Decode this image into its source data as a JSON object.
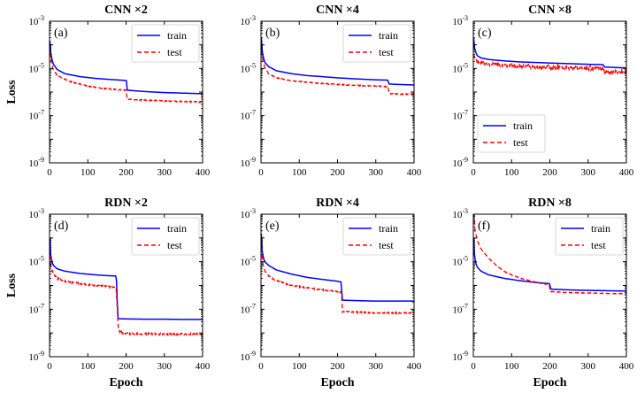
{
  "figure": {
    "y_axis_label": "Loss",
    "x_axis_label": "Epoch"
  },
  "colors": {
    "train": "#0000ff",
    "test": "#ff0000"
  },
  "chart_data": [
    {
      "type": "line",
      "panel": "(a)",
      "title": "CNN ×2",
      "xlabel": "",
      "ylabel": "Loss",
      "xlim": [
        0,
        400
      ],
      "ylim": [
        1e-09,
        0.001
      ],
      "yscale": "log",
      "xticks": [
        0,
        100,
        200,
        300,
        400
      ],
      "yticks": [
        {
          "value": 1e-09,
          "label": "10^-9"
        },
        {
          "value": 1e-07,
          "label": "10^-7"
        },
        {
          "value": 1e-05,
          "label": "10^-5"
        },
        {
          "value": 0.001,
          "label": "10^-3"
        }
      ],
      "legend": "top-right",
      "series": [
        {
          "name": "train",
          "style": "solid",
          "x": [
            1,
            3,
            6,
            10,
            20,
            40,
            80,
            120,
            160,
            199,
            201,
            202,
            250,
            300,
            350,
            400
          ],
          "y": [
            0.00015,
            5e-05,
            2.5e-05,
            1.5e-05,
            9e-06,
            6e-06,
            4.5e-06,
            3.8e-06,
            3.4e-06,
            3.1e-06,
            3e-06,
            1.2e-06,
            1.05e-06,
            9.5e-07,
            9e-07,
            8.5e-07
          ]
        },
        {
          "name": "test",
          "style": "dashed",
          "x": [
            1,
            5,
            10,
            20,
            40,
            60,
            80,
            100,
            120,
            140,
            160,
            180,
            200,
            203,
            250,
            300,
            350,
            400
          ],
          "y": [
            5e-05,
            1.8e-05,
            9e-06,
            5e-06,
            3.5e-06,
            2.6e-06,
            2.2e-06,
            1.8e-06,
            1.6e-06,
            1.45e-06,
            1.35e-06,
            1.25e-06,
            1.2e-06,
            5e-07,
            4.5e-07,
            4.2e-07,
            4e-07,
            3.8e-07
          ],
          "noise": 0.55
        }
      ]
    },
    {
      "type": "line",
      "panel": "(b)",
      "title": "CNN ×4",
      "xlabel": "",
      "ylabel": "",
      "xlim": [
        0,
        400
      ],
      "ylim": [
        1e-09,
        0.001
      ],
      "yscale": "log",
      "xticks": [
        0,
        100,
        200,
        300,
        400
      ],
      "yticks": [
        {
          "value": 1e-09,
          "label": "10^-9"
        },
        {
          "value": 1e-07,
          "label": "10^-7"
        },
        {
          "value": 1e-05,
          "label": "10^-5"
        },
        {
          "value": 0.001,
          "label": "10^-3"
        }
      ],
      "legend": "top-right",
      "series": [
        {
          "name": "train",
          "style": "solid",
          "x": [
            1,
            3,
            6,
            10,
            20,
            40,
            80,
            120,
            160,
            200,
            250,
            300,
            332,
            334,
            360,
            400
          ],
          "y": [
            0.0002,
            6e-05,
            3e-05,
            1.8e-05,
            1.2e-05,
            8e-06,
            6e-06,
            5e-06,
            4.5e-06,
            4e-06,
            3.6e-06,
            3.3e-06,
            3.2e-06,
            2.2e-06,
            2.1e-06,
            2e-06
          ]
        },
        {
          "name": "test",
          "style": "dashed",
          "x": [
            1,
            5,
            10,
            20,
            40,
            80,
            120,
            160,
            200,
            250,
            300,
            332,
            335,
            360,
            400
          ],
          "y": [
            5e-05,
            2e-05,
            1.1e-05,
            6e-06,
            4e-06,
            3e-06,
            2.6e-06,
            2.3e-06,
            2.1e-06,
            1.9e-06,
            1.8e-06,
            1.7e-06,
            8.5e-07,
            8.2e-07,
            8e-07
          ],
          "noise": 0.45
        }
      ]
    },
    {
      "type": "line",
      "panel": "(c)",
      "title": "CNN ×8",
      "xlabel": "",
      "ylabel": "",
      "xlim": [
        0,
        400
      ],
      "ylim": [
        1e-09,
        0.001
      ],
      "yscale": "log",
      "xticks": [
        0,
        100,
        200,
        300,
        400
      ],
      "yticks": [
        {
          "value": 1e-09,
          "label": "10^-9"
        },
        {
          "value": 1e-07,
          "label": "10^-7"
        },
        {
          "value": 1e-05,
          "label": "10^-5"
        },
        {
          "value": 0.001,
          "label": "10^-3"
        }
      ],
      "legend": "bottom-left",
      "series": [
        {
          "name": "train",
          "style": "solid",
          "x": [
            1,
            3,
            6,
            10,
            20,
            40,
            80,
            120,
            160,
            200,
            250,
            300,
            340,
            342,
            370,
            400
          ],
          "y": [
            0.0002,
            8e-05,
            5e-05,
            3.5e-05,
            2.8e-05,
            2.4e-05,
            2.1e-05,
            1.9e-05,
            1.8e-05,
            1.7e-05,
            1.6e-05,
            1.5e-05,
            1.45e-05,
            1.15e-05,
            1.1e-05,
            1.05e-05
          ]
        },
        {
          "name": "test",
          "style": "dashed",
          "x": [
            1,
            5,
            10,
            20,
            40,
            80,
            120,
            160,
            200,
            250,
            300,
            340,
            343,
            370,
            400
          ],
          "y": [
            4e-05,
            2.5e-05,
            2e-05,
            1.7e-05,
            1.5e-05,
            1.35e-05,
            1.25e-05,
            1.15e-05,
            1.1e-05,
            1.05e-05,
            1e-05,
            9.5e-06,
            7e-06,
            6.8e-06,
            6.6e-06
          ],
          "noise": 0.15
        }
      ]
    },
    {
      "type": "line",
      "panel": "(d)",
      "title": "RDN ×2",
      "xlabel": "Epoch",
      "ylabel": "Loss",
      "xlim": [
        0,
        400
      ],
      "ylim": [
        1e-09,
        0.001
      ],
      "yscale": "log",
      "xticks": [
        0,
        100,
        200,
        300,
        400
      ],
      "yticks": [
        {
          "value": 1e-09,
          "label": "10^-9"
        },
        {
          "value": 1e-07,
          "label": "10^-7"
        },
        {
          "value": 1e-05,
          "label": "10^-5"
        },
        {
          "value": 0.001,
          "label": "10^-3"
        }
      ],
      "legend": "top-right",
      "series": [
        {
          "name": "train",
          "style": "solid",
          "x": [
            1,
            3,
            6,
            10,
            20,
            40,
            80,
            120,
            150,
            174,
            176,
            178,
            200,
            250,
            300,
            350,
            400
          ],
          "y": [
            0.0001,
            2e-05,
            1e-05,
            7e-06,
            5e-06,
            4e-06,
            3.2e-06,
            2.8e-06,
            2.6e-06,
            2.5e-06,
            1e-06,
            4e-08,
            3.9e-08,
            3.8e-08,
            3.8e-08,
            3.7e-08,
            3.7e-08
          ]
        },
        {
          "name": "test",
          "style": "dashed",
          "x": [
            1,
            5,
            10,
            20,
            40,
            80,
            120,
            150,
            174,
            176,
            180,
            190,
            200,
            250,
            300,
            350,
            400
          ],
          "y": [
            2e-05,
            5e-06,
            3e-06,
            2e-06,
            1.5e-06,
            1.2e-06,
            1e-06,
            9e-07,
            8e-07,
            2e-07,
            1.2e-08,
            1e-08,
            9.5e-09,
            9e-09,
            9e-09,
            9e-09,
            9e-09
          ],
          "noise": 0.9
        }
      ]
    },
    {
      "type": "line",
      "panel": "(e)",
      "title": "RDN ×4",
      "xlabel": "Epoch",
      "ylabel": "",
      "xlim": [
        0,
        400
      ],
      "ylim": [
        1e-09,
        0.001
      ],
      "yscale": "log",
      "xticks": [
        0,
        100,
        200,
        300,
        400
      ],
      "yticks": [
        {
          "value": 1e-09,
          "label": "10^-9"
        },
        {
          "value": 1e-07,
          "label": "10^-7"
        },
        {
          "value": 1e-05,
          "label": "10^-5"
        },
        {
          "value": 0.001,
          "label": "10^-3"
        }
      ],
      "legend": "top-right",
      "series": [
        {
          "name": "train",
          "style": "solid",
          "x": [
            1,
            3,
            6,
            10,
            20,
            40,
            80,
            120,
            160,
            200,
            210,
            212,
            250,
            300,
            350,
            400
          ],
          "y": [
            0.00015,
            3e-05,
            1.5e-05,
            1e-05,
            7e-06,
            4.5e-06,
            3e-06,
            2.2e-06,
            1.8e-06,
            1.5e-06,
            1.4e-06,
            2.4e-07,
            2.3e-07,
            2.2e-07,
            2.2e-07,
            2.2e-07
          ]
        },
        {
          "name": "test",
          "style": "dashed",
          "x": [
            1,
            5,
            10,
            20,
            40,
            80,
            120,
            160,
            200,
            210,
            213,
            250,
            300,
            350,
            400
          ],
          "y": [
            3e-05,
            8e-06,
            4e-06,
            2.5e-06,
            1.6e-06,
            1e-06,
            8e-07,
            6.5e-07,
            5.5e-07,
            5e-07,
            8e-08,
            7.5e-08,
            7e-08,
            7e-08,
            7e-08
          ],
          "noise": 0.65
        }
      ]
    },
    {
      "type": "line",
      "panel": "(f)",
      "title": "RDN ×8",
      "xlabel": "Epoch",
      "ylabel": "",
      "xlim": [
        0,
        400
      ],
      "ylim": [
        1e-09,
        0.001
      ],
      "yscale": "log",
      "xticks": [
        0,
        100,
        200,
        300,
        400
      ],
      "yticks": [
        {
          "value": 1e-09,
          "label": "10^-9"
        },
        {
          "value": 1e-07,
          "label": "10^-7"
        },
        {
          "value": 1e-05,
          "label": "10^-5"
        },
        {
          "value": 0.001,
          "label": "10^-3"
        }
      ],
      "legend": "top-right",
      "series": [
        {
          "name": "train",
          "style": "solid",
          "x": [
            1,
            3,
            6,
            10,
            20,
            40,
            80,
            120,
            160,
            198,
            200,
            202,
            250,
            300,
            350,
            400
          ],
          "y": [
            0.0001,
            2e-05,
            9e-06,
            6e-06,
            4e-06,
            2.8e-06,
            2e-06,
            1.6e-06,
            1.35e-06,
            1.2e-06,
            1.15e-06,
            7e-07,
            6.5e-07,
            6.2e-07,
            6e-07,
            5.8e-07
          ]
        },
        {
          "name": "test",
          "style": "dashed",
          "x": [
            1,
            5,
            10,
            20,
            40,
            60,
            80,
            100,
            120,
            140,
            160,
            180,
            198,
            201,
            250,
            300,
            350,
            400
          ],
          "y": [
            0.001,
            0.0002,
            8e-05,
            3.5e-05,
            1.4e-05,
            7e-06,
            4e-06,
            2.8e-06,
            2.1e-06,
            1.7e-06,
            1.4e-06,
            1.2e-06,
            1.1e-06,
            5.5e-07,
            5e-07,
            4.8e-07,
            4.6e-07,
            4.5e-07
          ],
          "noise": 0.3
        }
      ]
    }
  ]
}
